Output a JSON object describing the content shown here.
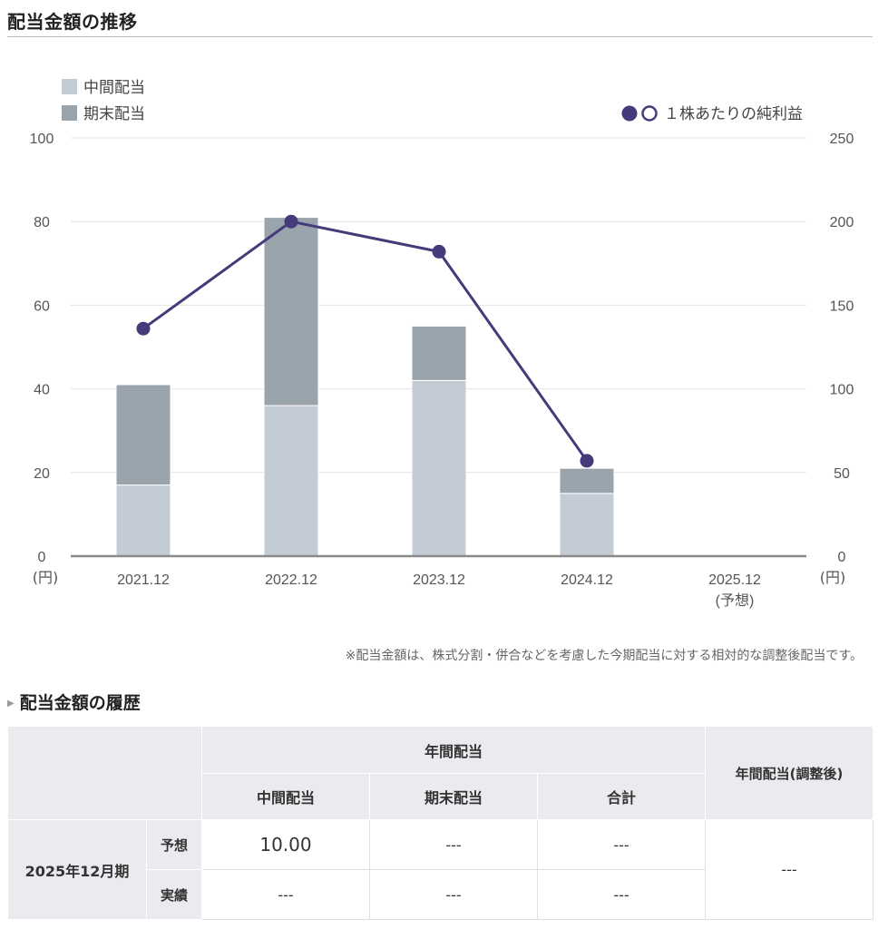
{
  "section_title": "配当金額の推移",
  "legend": {
    "interim": "中間配当",
    "yearend": "期末配当",
    "eps": "１株あたりの純利益"
  },
  "colors": {
    "interim": "#c3ccd4",
    "yearend": "#9aa4ad",
    "eps_line": "#453b7a",
    "grid": "#e3e3e3",
    "baseline": "#8a8a8a"
  },
  "chart_data": {
    "type": "bar",
    "stacked": true,
    "categories": [
      "2021.12",
      "2022.12",
      "2023.12",
      "2024.12",
      "2025.12"
    ],
    "category_sublabels": [
      "",
      "",
      "",
      "",
      "(予想)"
    ],
    "series": [
      {
        "name": "中間配当",
        "axis": "left",
        "values": [
          17,
          36,
          42,
          15,
          null
        ]
      },
      {
        "name": "期末配当",
        "axis": "left",
        "values": [
          24,
          45,
          13,
          6,
          null
        ]
      }
    ],
    "line_series": [
      {
        "name": "１株あたりの純利益",
        "axis": "right",
        "values": [
          136,
          200,
          182,
          57,
          null
        ]
      }
    ],
    "y_left": {
      "ticks": [
        "0",
        "20",
        "40",
        "60",
        "80",
        "100"
      ],
      "min": 0,
      "max": 100,
      "unit": "(円)"
    },
    "y_right": {
      "ticks": [
        "0",
        "50",
        "100",
        "150",
        "200",
        "250"
      ],
      "min": 0,
      "max": 250,
      "unit": "(円)"
    },
    "grid": true,
    "legend_position": "top"
  },
  "note": "※配当金額は、株式分割・併合などを考慮した今期配当に対する相対的な調整後配当です。",
  "history": {
    "title": "配当金額の履歴",
    "header": {
      "annual": "年間配当",
      "interim": "中間配当",
      "yearend": "期末配当",
      "total": "合計",
      "adjusted": "年間配当(調整後)"
    },
    "period": "2025年12月期",
    "rows": [
      {
        "label": "予想",
        "interim": "10.00",
        "yearend": "---",
        "total": "---"
      },
      {
        "label": "実績",
        "interim": "---",
        "yearend": "---",
        "total": "---"
      }
    ],
    "adjusted_value": "---"
  }
}
